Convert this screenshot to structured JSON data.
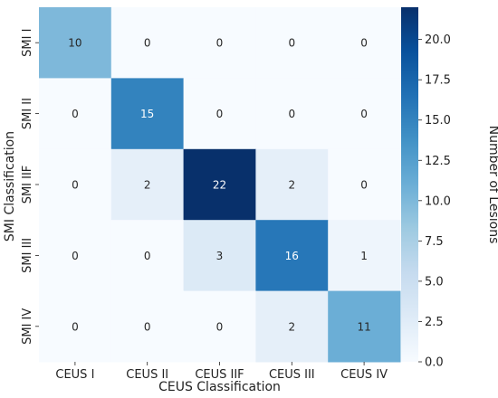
{
  "chart_data": {
    "type": "heatmap",
    "title": "",
    "xlabel": "CEUS Classification",
    "ylabel": "SMI Classification",
    "x_categories": [
      "CEUS I",
      "CEUS II",
      "CEUS IIF",
      "CEUS III",
      "CEUS IV"
    ],
    "y_categories": [
      "SMI I",
      "SMI II",
      "SMI IIF",
      "SMI III",
      "SMI IV"
    ],
    "values": [
      [
        10,
        0,
        0,
        0,
        0
      ],
      [
        0,
        15,
        0,
        0,
        0
      ],
      [
        0,
        2,
        22,
        2,
        0
      ],
      [
        0,
        0,
        3,
        16,
        1
      ],
      [
        0,
        0,
        0,
        2,
        11
      ]
    ],
    "colorbar": {
      "label": "Number of Lesions",
      "range": [
        0,
        22
      ],
      "ticks": [
        "0.0",
        "2.5",
        "5.0",
        "7.5",
        "10.0",
        "12.5",
        "15.0",
        "17.5",
        "20.0"
      ],
      "colormap": "Blues"
    }
  }
}
